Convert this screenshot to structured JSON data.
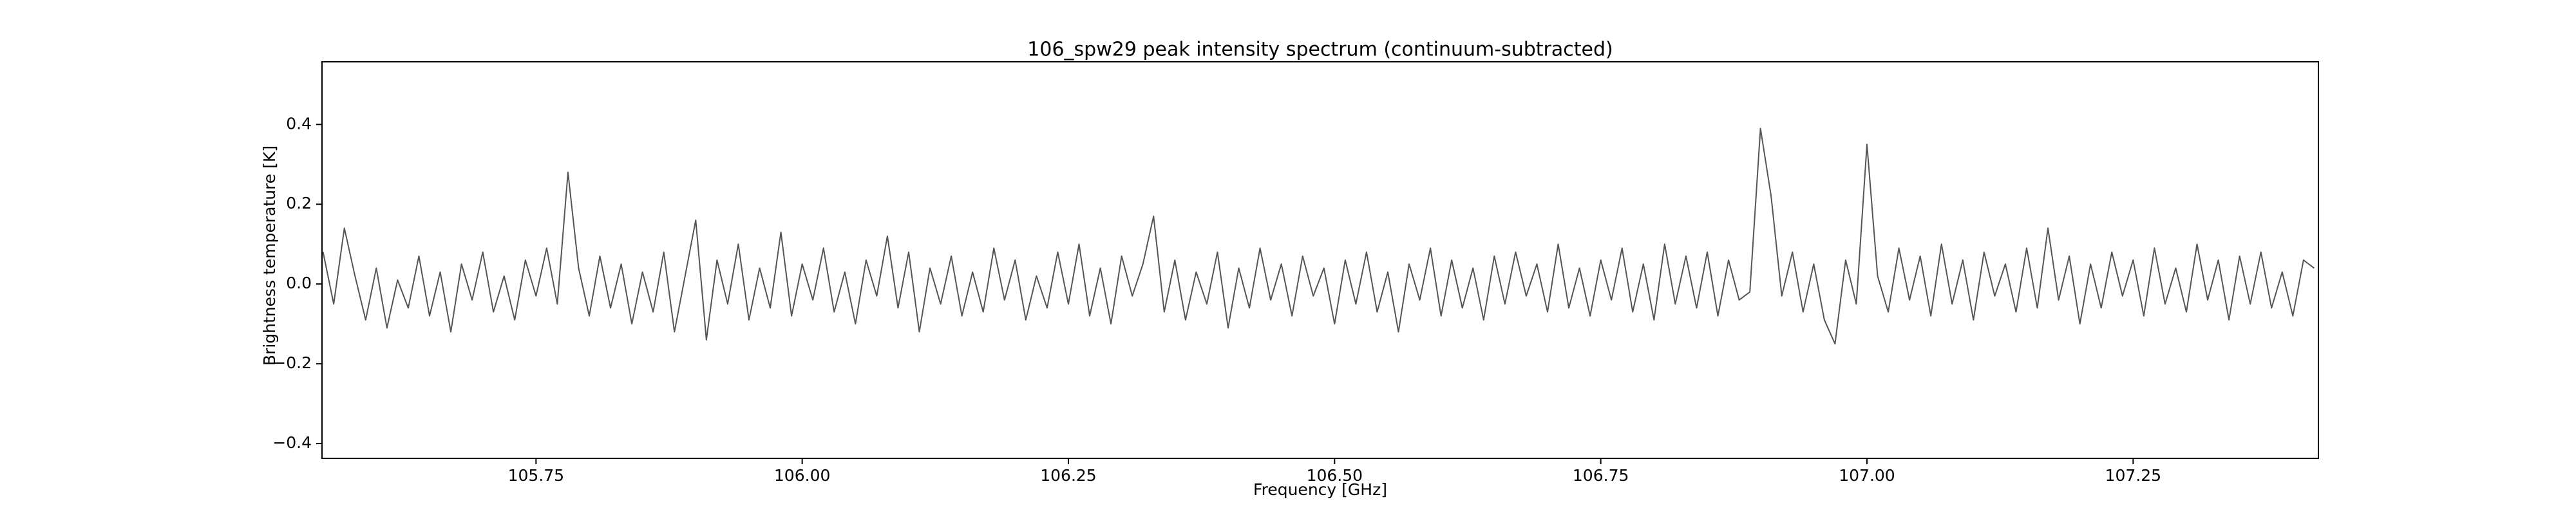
{
  "chart_data": {
    "type": "line",
    "title": "106_spw29 peak intensity spectrum (continuum-subtracted)",
    "xlabel": "Frequency [GHz]",
    "ylabel": "Brightness temperature [K]",
    "color": "#555555",
    "xlim": [
      105.549,
      107.424
    ],
    "ylim": [
      -0.437,
      0.557
    ],
    "xticks": [
      105.75,
      {
        "value": 106,
        "label": "106.00"
      },
      106.25,
      {
        "value": 106.5,
        "label": "106.50"
      },
      106.75,
      {
        "value": 107,
        "label": "107.00"
      },
      107.25
    ],
    "yticks": [
      {
        "value": -0.4,
        "label": "−0.4"
      },
      {
        "value": -0.2,
        "label": "−0.2"
      },
      {
        "value": 0,
        "label": "0.0"
      },
      0.2,
      0.4
    ],
    "x": [
      105.55,
      105.56,
      105.57,
      105.58,
      105.59,
      105.6,
      105.61,
      105.62,
      105.63,
      105.64,
      105.65,
      105.66,
      105.67,
      105.68,
      105.69,
      105.7,
      105.71,
      105.72,
      105.73,
      105.74,
      105.75,
      105.76,
      105.77,
      105.78,
      105.79,
      105.8,
      105.81,
      105.82,
      105.83,
      105.84,
      105.85,
      105.86,
      105.87,
      105.88,
      105.89,
      105.9,
      105.91,
      105.92,
      105.93,
      105.94,
      105.95,
      105.96,
      105.97,
      105.98,
      105.99,
      106.0,
      106.01,
      106.02,
      106.03,
      106.04,
      106.05,
      106.06,
      106.07,
      106.08,
      106.09,
      106.1,
      106.11,
      106.12,
      106.13,
      106.14,
      106.15,
      106.16,
      106.17,
      106.18,
      106.19,
      106.2,
      106.21,
      106.22,
      106.23,
      106.24,
      106.25,
      106.26,
      106.27,
      106.28,
      106.29,
      106.3,
      106.31,
      106.32,
      106.33,
      106.34,
      106.35,
      106.36,
      106.37,
      106.38,
      106.39,
      106.4,
      106.41,
      106.42,
      106.43,
      106.44,
      106.45,
      106.46,
      106.47,
      106.48,
      106.49,
      106.5,
      106.51,
      106.52,
      106.53,
      106.54,
      106.55,
      106.56,
      106.57,
      106.58,
      106.59,
      106.6,
      106.61,
      106.62,
      106.63,
      106.64,
      106.65,
      106.66,
      106.67,
      106.68,
      106.69,
      106.7,
      106.71,
      106.72,
      106.73,
      106.74,
      106.75,
      106.76,
      106.77,
      106.78,
      106.79,
      106.8,
      106.81,
      106.82,
      106.83,
      106.84,
      106.85,
      106.86,
      106.87,
      106.88,
      106.89,
      106.9,
      106.91,
      106.92,
      106.93,
      106.94,
      106.95,
      106.96,
      106.97,
      106.98,
      106.99,
      107.0,
      107.01,
      107.02,
      107.03,
      107.04,
      107.05,
      107.06,
      107.07,
      107.08,
      107.09,
      107.1,
      107.11,
      107.12,
      107.13,
      107.14,
      107.15,
      107.16,
      107.17,
      107.18,
      107.19,
      107.2,
      107.21,
      107.22,
      107.23,
      107.24,
      107.25,
      107.26,
      107.27,
      107.28,
      107.29,
      107.3,
      107.31,
      107.32,
      107.33,
      107.34,
      107.35,
      107.36,
      107.37,
      107.38,
      107.39,
      107.4,
      107.41,
      107.42
    ],
    "values": [
      0.08,
      -0.05,
      0.14,
      0.02,
      -0.09,
      0.04,
      -0.11,
      0.01,
      -0.06,
      0.07,
      -0.08,
      0.03,
      -0.12,
      0.05,
      -0.04,
      0.08,
      -0.07,
      0.02,
      -0.09,
      0.06,
      -0.03,
      0.09,
      -0.05,
      0.28,
      0.04,
      -0.08,
      0.07,
      -0.06,
      0.05,
      -0.1,
      0.03,
      -0.07,
      0.08,
      -0.12,
      0.02,
      0.16,
      -0.14,
      0.06,
      -0.05,
      0.1,
      -0.09,
      0.04,
      -0.06,
      0.13,
      -0.08,
      0.05,
      -0.04,
      0.09,
      -0.07,
      0.03,
      -0.1,
      0.06,
      -0.03,
      0.12,
      -0.06,
      0.08,
      -0.12,
      0.04,
      -0.05,
      0.07,
      -0.08,
      0.03,
      -0.07,
      0.09,
      -0.04,
      0.06,
      -0.09,
      0.02,
      -0.06,
      0.08,
      -0.05,
      0.1,
      -0.08,
      0.04,
      -0.1,
      0.07,
      -0.03,
      0.05,
      0.17,
      -0.07,
      0.06,
      -0.09,
      0.03,
      -0.05,
      0.08,
      -0.11,
      0.04,
      -0.06,
      0.09,
      -0.04,
      0.05,
      -0.08,
      0.07,
      -0.03,
      0.04,
      -0.1,
      0.06,
      -0.05,
      0.08,
      -0.07,
      0.03,
      -0.12,
      0.05,
      -0.04,
      0.09,
      -0.08,
      0.06,
      -0.06,
      0.04,
      -0.09,
      0.07,
      -0.05,
      0.08,
      -0.03,
      0.05,
      -0.07,
      0.1,
      -0.06,
      0.04,
      -0.08,
      0.06,
      -0.04,
      0.09,
      -0.07,
      0.05,
      -0.09,
      0.1,
      -0.05,
      0.07,
      -0.06,
      0.08,
      -0.08,
      0.06,
      -0.04,
      -0.02,
      0.39,
      0.22,
      -0.03,
      0.08,
      -0.07,
      0.05,
      -0.09,
      -0.15,
      0.06,
      -0.05,
      0.35,
      0.02,
      -0.07,
      0.09,
      -0.04,
      0.07,
      -0.08,
      0.1,
      -0.05,
      0.06,
      -0.09,
      0.08,
      -0.03,
      0.05,
      -0.07,
      0.09,
      -0.06,
      0.14,
      -0.04,
      0.07,
      -0.1,
      0.05,
      -0.06,
      0.08,
      -0.03,
      0.06,
      -0.08,
      0.09,
      -0.05,
      0.04,
      -0.07,
      0.1,
      -0.04,
      0.06,
      -0.09,
      0.07,
      -0.05,
      0.08,
      -0.06,
      0.03,
      -0.08,
      0.06,
      0.04
    ]
  }
}
